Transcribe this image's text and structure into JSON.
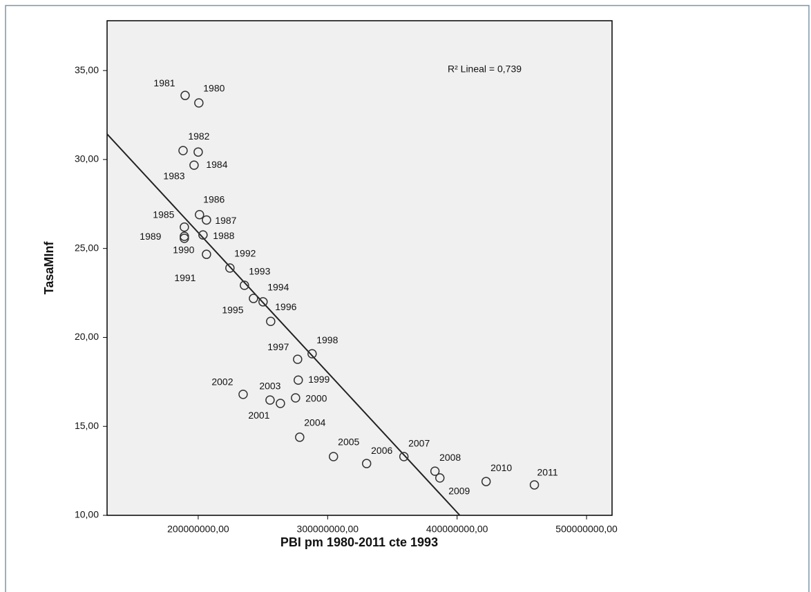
{
  "chart_data": {
    "type": "scatter",
    "x_label": "PBI pm 1980-2011 cte 1993",
    "y_label": "TasaMInf",
    "annotation": "R² Lineal = 0,739",
    "color": "#333333",
    "xlim": [
      129600000,
      519700000
    ],
    "ylim": [
      10,
      37.8
    ],
    "xticks": [
      {
        "value": 200000000,
        "label": "200000000,00"
      },
      {
        "value": 300000000,
        "label": "300000000,00"
      },
      {
        "value": 400000000,
        "label": "400000000,00"
      },
      {
        "value": 500000000,
        "label": "500000000,00"
      }
    ],
    "yticks": [
      {
        "value": 10,
        "label": "10,00"
      },
      {
        "value": 15,
        "label": "15,00"
      },
      {
        "value": 20,
        "label": "20,00"
      },
      {
        "value": 25,
        "label": "25,00"
      },
      {
        "value": 30,
        "label": "30,00"
      },
      {
        "value": 35,
        "label": "35,00"
      }
    ],
    "point_labels": [
      "1980",
      "1981",
      "1982",
      "1983",
      "1984",
      "1985",
      "1986",
      "1987",
      "1988",
      "1989",
      "1990",
      "1991",
      "1992",
      "1993",
      "1994",
      "1995",
      "1996",
      "1997",
      "1998",
      "1999",
      "2000",
      "2001",
      "2002",
      "2003",
      "2004",
      "2005",
      "2006",
      "2007",
      "2008",
      "2009",
      "2010",
      "2011"
    ],
    "x": [
      200500000,
      189900000,
      200000000,
      188300000,
      196800000,
      189300000,
      201000000,
      206400000,
      203700000,
      189300000,
      189300000,
      206400000,
      224500000,
      235700000,
      250100000,
      242700000,
      256000000,
      276800000,
      288000000,
      277300000,
      275200000,
      255500000,
      234700000,
      263500000,
      278400000,
      304500000,
      330100000,
      358900000,
      382900000,
      386700000,
      422400000,
      459700000
    ],
    "y": [
      33.18,
      33.6,
      30.42,
      30.5,
      29.68,
      26.2,
      26.9,
      26.6,
      25.76,
      25.68,
      25.57,
      24.67,
      23.9,
      22.93,
      22.0,
      22.19,
      20.9,
      18.77,
      19.08,
      17.6,
      16.6,
      16.48,
      16.8,
      16.29,
      14.39,
      13.3,
      12.91,
      13.3,
      12.48,
      12.1,
      11.9,
      11.71
    ],
    "fit_line": {
      "x": [
        129600000,
        402100000
      ],
      "y": [
        31.43,
        10
      ]
    }
  }
}
